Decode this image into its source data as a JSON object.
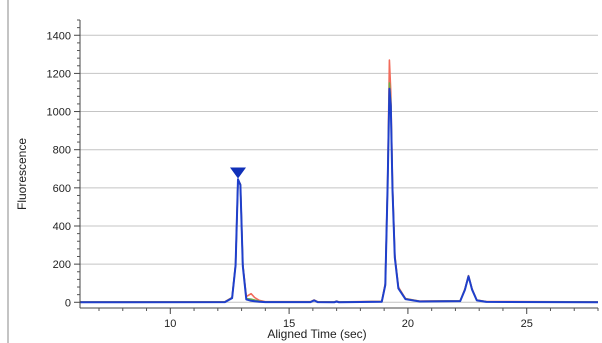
{
  "chart_data": {
    "type": "line",
    "title": "",
    "xlabel": "Aligned Time (sec)",
    "ylabel": "Fluorescence",
    "xlim": [
      6.2,
      28.0
    ],
    "ylim": [
      -30,
      1480
    ],
    "x_ticks": [
      10,
      15,
      20,
      25
    ],
    "y_ticks": [
      0,
      200,
      400,
      600,
      800,
      1000,
      1200,
      1400
    ],
    "x_tick_labels": [
      "10",
      "15",
      "20",
      "25"
    ],
    "y_tick_labels": [
      "0",
      "200",
      "400",
      "600",
      "800",
      "1000",
      "1200",
      "1400"
    ],
    "grid": "horizontal",
    "legend": "none",
    "series": [
      {
        "color": "#f26b5b",
        "x": [
          6.2,
          12.3,
          12.6,
          12.75,
          12.85,
          12.95,
          13.05,
          13.2,
          13.4,
          13.55,
          13.75,
          14.0,
          15.9,
          16.05,
          16.2,
          16.9,
          17.0,
          17.1,
          18.9,
          19.05,
          19.15,
          19.22,
          19.28,
          19.35,
          19.45,
          19.6,
          19.9,
          20.5,
          22.2,
          22.4,
          22.55,
          22.7,
          22.9,
          23.3,
          28.0
        ],
        "y": [
          2,
          3,
          25,
          200,
          640,
          620,
          200,
          30,
          45,
          25,
          10,
          3,
          3,
          12,
          3,
          2,
          6,
          2,
          5,
          100,
          650,
          1270,
          1100,
          620,
          250,
          80,
          20,
          6,
          8,
          70,
          140,
          70,
          12,
          4,
          2
        ]
      },
      {
        "color": "#6fae47",
        "x": [
          6.2,
          12.3,
          12.6,
          12.75,
          12.85,
          12.95,
          13.05,
          13.2,
          13.4,
          13.55,
          13.75,
          14.0,
          15.9,
          16.05,
          16.2,
          16.9,
          17.0,
          17.1,
          18.9,
          19.05,
          19.15,
          19.22,
          19.28,
          19.35,
          19.45,
          19.6,
          19.9,
          20.5,
          22.2,
          22.4,
          22.55,
          22.7,
          22.9,
          23.3,
          28.0
        ],
        "y": [
          1,
          2,
          24,
          198,
          642,
          618,
          195,
          20,
          16,
          12,
          5,
          2,
          2,
          11,
          2,
          1,
          5,
          1,
          4,
          95,
          640,
          1150,
          1050,
          600,
          240,
          75,
          18,
          5,
          7,
          68,
          138,
          68,
          11,
          3,
          1
        ]
      },
      {
        "color": "#1f3fcc",
        "x": [
          6.2,
          12.3,
          12.6,
          12.75,
          12.85,
          12.95,
          13.05,
          13.2,
          13.4,
          13.55,
          13.75,
          14.0,
          15.9,
          16.05,
          16.2,
          16.9,
          17.0,
          17.1,
          18.9,
          19.05,
          19.15,
          19.22,
          19.28,
          19.35,
          19.45,
          19.6,
          19.9,
          20.5,
          22.2,
          22.4,
          22.55,
          22.7,
          22.9,
          23.3,
          28.0
        ],
        "y": [
          0,
          1,
          22,
          195,
          645,
          615,
          190,
          15,
          8,
          5,
          3,
          1,
          1,
          10,
          1,
          0,
          4,
          0,
          3,
          90,
          630,
          1120,
          1030,
          590,
          235,
          72,
          16,
          4,
          6,
          65,
          136,
          66,
          10,
          2,
          0
        ]
      }
    ],
    "annotations": [
      {
        "type": "peak-marker",
        "shape": "triangle-down",
        "color": "#1030b8",
        "x": 12.85,
        "y": 675
      }
    ]
  }
}
